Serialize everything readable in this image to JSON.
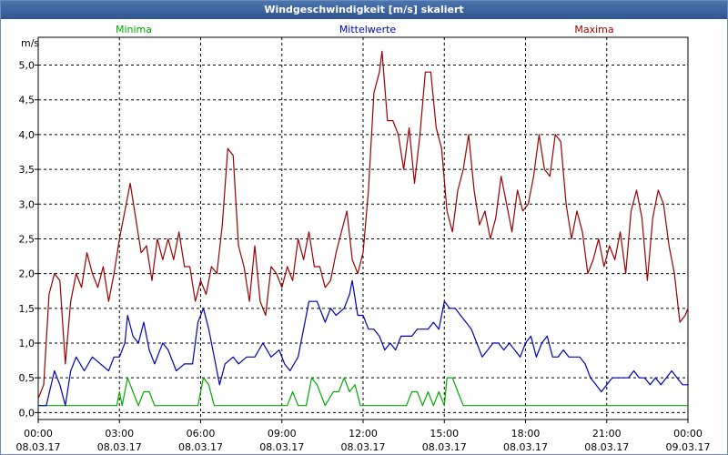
{
  "window": {
    "title": "Windgeschwindigkeit [m/s] skaliert"
  },
  "chart_data": {
    "type": "line",
    "title": "Windgeschwindigkeit [m/s] skaliert",
    "ylabel": "m/s",
    "ylim": [
      -0.1,
      5.4
    ],
    "yticks": [
      "0,0",
      "0,5",
      "1,0",
      "1,5",
      "2,0",
      "2,5",
      "3,0",
      "3,5",
      "4,0",
      "4,5",
      "5,0"
    ],
    "xlim": [
      0,
      24
    ],
    "xticks": [
      {
        "time": "00:00",
        "date": "08.03.17"
      },
      {
        "time": "03:00",
        "date": "08.03.17"
      },
      {
        "time": "06:00",
        "date": "08.03.17"
      },
      {
        "time": "09:00",
        "date": "08.03.17"
      },
      {
        "time": "12:00",
        "date": "08.03.17"
      },
      {
        "time": "15:00",
        "date": "08.03.17"
      },
      {
        "time": "18:00",
        "date": "08.03.17"
      },
      {
        "time": "21:00",
        "date": "08.03.17"
      },
      {
        "time": "00:00",
        "date": "09.03.17"
      }
    ],
    "grid": true,
    "series": [
      {
        "name": "Minima",
        "color": "#00aa00",
        "points": [
          [
            0,
            0.1
          ],
          [
            2.9,
            0.1
          ],
          [
            3.0,
            0.3
          ],
          [
            3.1,
            0.1
          ],
          [
            3.3,
            0.5
          ],
          [
            3.5,
            0.3
          ],
          [
            3.7,
            0.1
          ],
          [
            3.9,
            0.3
          ],
          [
            4.1,
            0.3
          ],
          [
            4.3,
            0.1
          ],
          [
            5.9,
            0.1
          ],
          [
            6.1,
            0.5
          ],
          [
            6.3,
            0.4
          ],
          [
            6.5,
            0.1
          ],
          [
            9.2,
            0.1
          ],
          [
            9.4,
            0.3
          ],
          [
            9.6,
            0.1
          ],
          [
            9.9,
            0.1
          ],
          [
            10.1,
            0.5
          ],
          [
            10.3,
            0.4
          ],
          [
            10.6,
            0.1
          ],
          [
            10.9,
            0.3
          ],
          [
            11.1,
            0.3
          ],
          [
            11.3,
            0.5
          ],
          [
            11.5,
            0.3
          ],
          [
            11.7,
            0.4
          ],
          [
            11.9,
            0.1
          ],
          [
            13.6,
            0.1
          ],
          [
            13.8,
            0.3
          ],
          [
            14.0,
            0.3
          ],
          [
            14.2,
            0.1
          ],
          [
            14.4,
            0.3
          ],
          [
            14.6,
            0.1
          ],
          [
            14.8,
            0.3
          ],
          [
            15.0,
            0.1
          ],
          [
            15.1,
            0.5
          ],
          [
            15.3,
            0.5
          ],
          [
            15.5,
            0.3
          ],
          [
            15.7,
            0.1
          ],
          [
            24.0,
            0.1
          ]
        ]
      },
      {
        "name": "Mittelwerte",
        "color": "#0000bb",
        "points": [
          [
            0,
            0.1
          ],
          [
            0.3,
            0.1
          ],
          [
            0.6,
            0.6
          ],
          [
            0.8,
            0.4
          ],
          [
            1.0,
            0.1
          ],
          [
            1.2,
            0.6
          ],
          [
            1.4,
            0.8
          ],
          [
            1.7,
            0.6
          ],
          [
            2.0,
            0.8
          ],
          [
            2.3,
            0.7
          ],
          [
            2.6,
            0.6
          ],
          [
            2.8,
            0.8
          ],
          [
            3.0,
            0.8
          ],
          [
            3.2,
            1.0
          ],
          [
            3.3,
            1.4
          ],
          [
            3.5,
            1.1
          ],
          [
            3.7,
            1.0
          ],
          [
            3.9,
            1.3
          ],
          [
            4.1,
            0.9
          ],
          [
            4.3,
            0.7
          ],
          [
            4.6,
            1.0
          ],
          [
            4.8,
            0.9
          ],
          [
            5.1,
            0.6
          ],
          [
            5.4,
            0.7
          ],
          [
            5.7,
            0.7
          ],
          [
            5.9,
            1.3
          ],
          [
            6.1,
            1.5
          ],
          [
            6.3,
            1.2
          ],
          [
            6.5,
            0.8
          ],
          [
            6.7,
            0.4
          ],
          [
            6.9,
            0.7
          ],
          [
            7.2,
            0.8
          ],
          [
            7.4,
            0.7
          ],
          [
            7.7,
            0.8
          ],
          [
            8.0,
            0.8
          ],
          [
            8.3,
            1.0
          ],
          [
            8.6,
            0.8
          ],
          [
            8.9,
            0.9
          ],
          [
            9.1,
            0.7
          ],
          [
            9.3,
            0.6
          ],
          [
            9.6,
            0.8
          ],
          [
            9.8,
            1.2
          ],
          [
            10.0,
            1.6
          ],
          [
            10.3,
            1.6
          ],
          [
            10.6,
            1.3
          ],
          [
            10.8,
            1.5
          ],
          [
            11.0,
            1.4
          ],
          [
            11.3,
            1.5
          ],
          [
            11.5,
            1.7
          ],
          [
            11.6,
            1.9
          ],
          [
            11.8,
            1.4
          ],
          [
            12.0,
            1.4
          ],
          [
            12.2,
            1.2
          ],
          [
            12.4,
            1.2
          ],
          [
            12.6,
            1.1
          ],
          [
            12.8,
            0.9
          ],
          [
            13.0,
            1.0
          ],
          [
            13.2,
            0.9
          ],
          [
            13.4,
            1.1
          ],
          [
            13.6,
            1.1
          ],
          [
            13.8,
            1.1
          ],
          [
            14.0,
            1.2
          ],
          [
            14.2,
            1.2
          ],
          [
            14.4,
            1.2
          ],
          [
            14.6,
            1.3
          ],
          [
            14.8,
            1.2
          ],
          [
            15.0,
            1.6
          ],
          [
            15.2,
            1.5
          ],
          [
            15.4,
            1.5
          ],
          [
            15.6,
            1.4
          ],
          [
            15.8,
            1.3
          ],
          [
            16.0,
            1.2
          ],
          [
            16.2,
            1.0
          ],
          [
            16.4,
            0.8
          ],
          [
            16.6,
            0.9
          ],
          [
            16.8,
            1.0
          ],
          [
            17.0,
            1.0
          ],
          [
            17.2,
            0.9
          ],
          [
            17.4,
            1.0
          ],
          [
            17.6,
            0.9
          ],
          [
            17.8,
            0.8
          ],
          [
            18.0,
            1.0
          ],
          [
            18.2,
            1.1
          ],
          [
            18.4,
            0.8
          ],
          [
            18.6,
            1.0
          ],
          [
            18.8,
            1.1
          ],
          [
            19.0,
            0.8
          ],
          [
            19.2,
            0.8
          ],
          [
            19.4,
            0.9
          ],
          [
            19.6,
            0.8
          ],
          [
            19.8,
            0.8
          ],
          [
            20.0,
            0.8
          ],
          [
            20.2,
            0.7
          ],
          [
            20.4,
            0.5
          ],
          [
            20.6,
            0.4
          ],
          [
            20.8,
            0.3
          ],
          [
            21.0,
            0.4
          ],
          [
            21.2,
            0.5
          ],
          [
            21.4,
            0.5
          ],
          [
            21.6,
            0.5
          ],
          [
            21.8,
            0.5
          ],
          [
            22.0,
            0.6
          ],
          [
            22.2,
            0.5
          ],
          [
            22.4,
            0.5
          ],
          [
            22.6,
            0.4
          ],
          [
            22.8,
            0.5
          ],
          [
            23.0,
            0.4
          ],
          [
            23.2,
            0.5
          ],
          [
            23.4,
            0.6
          ],
          [
            23.6,
            0.5
          ],
          [
            23.8,
            0.4
          ],
          [
            24.0,
            0.4
          ]
        ]
      },
      {
        "name": "Maxima",
        "color": "#990000",
        "points": [
          [
            0,
            0.2
          ],
          [
            0.2,
            0.4
          ],
          [
            0.4,
            1.7
          ],
          [
            0.6,
            2.0
          ],
          [
            0.8,
            1.9
          ],
          [
            1.0,
            0.7
          ],
          [
            1.2,
            1.6
          ],
          [
            1.4,
            2.0
          ],
          [
            1.6,
            1.8
          ],
          [
            1.8,
            2.3
          ],
          [
            2.0,
            2.0
          ],
          [
            2.2,
            1.8
          ],
          [
            2.4,
            2.1
          ],
          [
            2.6,
            1.6
          ],
          [
            2.8,
            2.0
          ],
          [
            3.0,
            2.5
          ],
          [
            3.2,
            2.9
          ],
          [
            3.4,
            3.3
          ],
          [
            3.6,
            2.8
          ],
          [
            3.8,
            2.3
          ],
          [
            4.0,
            2.4
          ],
          [
            4.2,
            1.9
          ],
          [
            4.4,
            2.5
          ],
          [
            4.6,
            2.2
          ],
          [
            4.8,
            2.5
          ],
          [
            5.0,
            2.2
          ],
          [
            5.2,
            2.6
          ],
          [
            5.4,
            2.1
          ],
          [
            5.6,
            2.1
          ],
          [
            5.8,
            1.6
          ],
          [
            6.0,
            1.9
          ],
          [
            6.2,
            1.7
          ],
          [
            6.4,
            2.1
          ],
          [
            6.6,
            2.0
          ],
          [
            6.8,
            2.7
          ],
          [
            7.0,
            3.8
          ],
          [
            7.2,
            3.7
          ],
          [
            7.4,
            2.4
          ],
          [
            7.6,
            2.1
          ],
          [
            7.8,
            1.6
          ],
          [
            8.0,
            2.4
          ],
          [
            8.2,
            1.6
          ],
          [
            8.4,
            1.4
          ],
          [
            8.6,
            2.1
          ],
          [
            8.8,
            2.0
          ],
          [
            9.0,
            1.8
          ],
          [
            9.2,
            2.1
          ],
          [
            9.4,
            1.9
          ],
          [
            9.6,
            2.5
          ],
          [
            9.8,
            2.2
          ],
          [
            10.0,
            2.6
          ],
          [
            10.2,
            2.1
          ],
          [
            10.4,
            2.1
          ],
          [
            10.6,
            1.8
          ],
          [
            10.8,
            1.9
          ],
          [
            11.0,
            2.3
          ],
          [
            11.2,
            2.6
          ],
          [
            11.4,
            2.9
          ],
          [
            11.6,
            2.2
          ],
          [
            11.8,
            2.0
          ],
          [
            12.0,
            2.3
          ],
          [
            12.2,
            3.2
          ],
          [
            12.4,
            4.6
          ],
          [
            12.6,
            4.9
          ],
          [
            12.7,
            5.2
          ],
          [
            12.9,
            4.2
          ],
          [
            13.1,
            4.2
          ],
          [
            13.3,
            4.0
          ],
          [
            13.5,
            3.5
          ],
          [
            13.7,
            4.1
          ],
          [
            13.9,
            3.3
          ],
          [
            14.1,
            4.0
          ],
          [
            14.3,
            4.9
          ],
          [
            14.5,
            4.9
          ],
          [
            14.7,
            4.1
          ],
          [
            14.9,
            3.8
          ],
          [
            15.1,
            2.9
          ],
          [
            15.3,
            2.6
          ],
          [
            15.5,
            3.2
          ],
          [
            15.7,
            3.5
          ],
          [
            15.9,
            4.0
          ],
          [
            16.1,
            3.2
          ],
          [
            16.3,
            2.7
          ],
          [
            16.5,
            2.9
          ],
          [
            16.7,
            2.5
          ],
          [
            16.9,
            2.8
          ],
          [
            17.1,
            3.4
          ],
          [
            17.3,
            3.0
          ],
          [
            17.5,
            2.6
          ],
          [
            17.7,
            3.2
          ],
          [
            17.9,
            2.9
          ],
          [
            18.1,
            3.0
          ],
          [
            18.3,
            3.4
          ],
          [
            18.5,
            4.0
          ],
          [
            18.7,
            3.5
          ],
          [
            18.9,
            3.4
          ],
          [
            19.1,
            4.0
          ],
          [
            19.3,
            3.9
          ],
          [
            19.5,
            3.0
          ],
          [
            19.7,
            2.5
          ],
          [
            19.9,
            2.9
          ],
          [
            20.1,
            2.6
          ],
          [
            20.3,
            2.0
          ],
          [
            20.5,
            2.2
          ],
          [
            20.7,
            2.5
          ],
          [
            20.9,
            2.1
          ],
          [
            21.1,
            2.4
          ],
          [
            21.3,
            2.2
          ],
          [
            21.5,
            2.6
          ],
          [
            21.7,
            2.0
          ],
          [
            21.9,
            2.9
          ],
          [
            22.1,
            3.2
          ],
          [
            22.3,
            2.8
          ],
          [
            22.5,
            1.9
          ],
          [
            22.7,
            2.8
          ],
          [
            22.9,
            3.2
          ],
          [
            23.1,
            3.0
          ],
          [
            23.3,
            2.4
          ],
          [
            23.5,
            2.0
          ],
          [
            23.7,
            1.3
          ],
          [
            23.9,
            1.4
          ],
          [
            24.0,
            1.5
          ]
        ]
      }
    ]
  }
}
